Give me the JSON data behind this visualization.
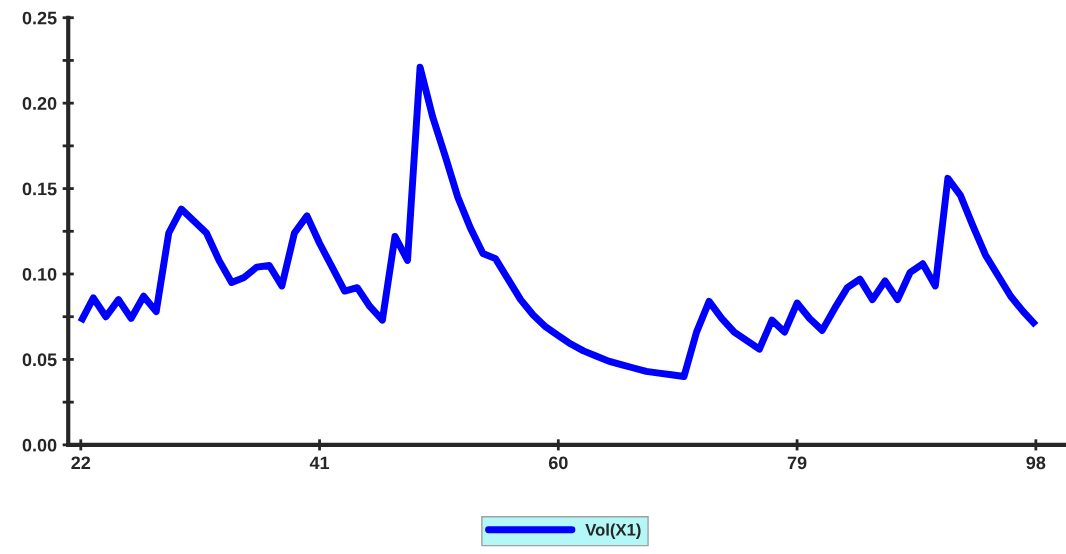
{
  "chart_data": {
    "type": "line",
    "x": [
      22,
      23,
      24,
      25,
      26,
      27,
      28,
      29,
      30,
      31,
      32,
      33,
      34,
      35,
      36,
      37,
      38,
      39,
      40,
      41,
      42,
      43,
      44,
      45,
      46,
      47,
      48,
      49,
      50,
      51,
      52,
      53,
      54,
      55,
      56,
      57,
      58,
      59,
      60,
      61,
      62,
      63,
      64,
      65,
      66,
      67,
      68,
      69,
      70,
      71,
      72,
      73,
      74,
      75,
      76,
      77,
      78,
      79,
      80,
      81,
      82,
      83,
      84,
      85,
      86,
      87,
      88,
      89,
      90,
      91,
      92,
      93,
      94,
      95,
      96,
      97,
      98
    ],
    "series": [
      {
        "name": "Vol(X1)",
        "color": "#0000ff",
        "values": [
          0.072,
          0.086,
          0.075,
          0.085,
          0.074,
          0.087,
          0.078,
          0.124,
          0.138,
          0.131,
          0.124,
          0.108,
          0.095,
          0.098,
          0.104,
          0.105,
          0.093,
          0.124,
          0.134,
          0.118,
          0.104,
          0.09,
          0.092,
          0.081,
          0.073,
          0.122,
          0.108,
          0.221,
          0.192,
          0.169,
          0.145,
          0.127,
          0.112,
          0.109,
          0.097,
          0.085,
          0.076,
          0.069,
          0.064,
          0.059,
          0.055,
          0.052,
          0.049,
          0.047,
          0.045,
          0.043,
          0.042,
          0.041,
          0.04,
          0.066,
          0.084,
          0.074,
          0.066,
          0.061,
          0.056,
          0.073,
          0.066,
          0.083,
          0.074,
          0.067,
          0.08,
          0.092,
          0.097,
          0.085,
          0.096,
          0.085,
          0.101,
          0.106,
          0.093,
          0.156,
          0.146,
          0.128,
          0.111,
          0.099,
          0.087,
          0.078,
          0.07
        ]
      }
    ],
    "xlim": [
      21,
      100.4
    ],
    "xticks": [
      22,
      41,
      60,
      79,
      98
    ],
    "ylim": [
      0,
      0.25
    ],
    "yticks": [
      {
        "value": 0,
        "label": "0.00"
      },
      {
        "value": 0.05,
        "label": "0.05"
      },
      {
        "value": 0.1,
        "label": "0.10"
      },
      {
        "value": 0.15,
        "label": "0.15"
      },
      {
        "value": 0.2,
        "label": "0.20"
      },
      {
        "value": 0.25,
        "label": "0.25"
      }
    ],
    "grid": false,
    "legend": "bottom",
    "marker": "none",
    "line_style": "solid"
  }
}
